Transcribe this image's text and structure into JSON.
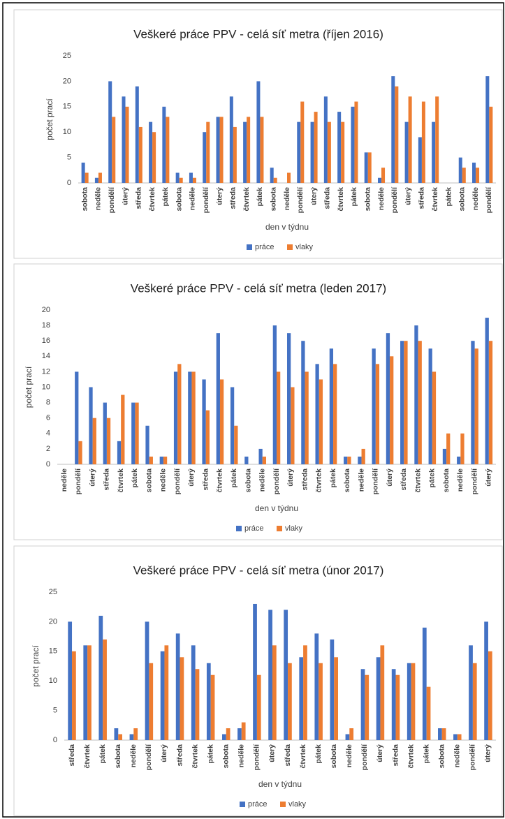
{
  "chart_data": [
    {
      "type": "bar",
      "title": "Veškeré práce PPV - celá síť metra (říjen 2016)",
      "x_label": "den v týdnu",
      "y_label": "počet prací",
      "categories": [
        "sobota",
        "neděle",
        "pondělí",
        "úterý",
        "středa",
        "čtvrtek",
        "pátek",
        "sobota",
        "neděle",
        "pondělí",
        "úterý",
        "středa",
        "čtvrtek",
        "pátek",
        "sobota",
        "neděle",
        "pondělí",
        "úterý",
        "středa",
        "čtvrtek",
        "pátek",
        "sobota",
        "neděle",
        "pondělí",
        "úterý",
        "středa",
        "čtvrtek",
        "pátek",
        "sobota",
        "neděle",
        "pondělí"
      ],
      "series": [
        {
          "name": "práce",
          "color": "#4472c4",
          "values": [
            4,
            1,
            20,
            17,
            19,
            12,
            15,
            2,
            2,
            10,
            13,
            17,
            12,
            20,
            3,
            0,
            12,
            12,
            17,
            14,
            15,
            6,
            1,
            21,
            12,
            9,
            12,
            0,
            5,
            4,
            21
          ]
        },
        {
          "name": "vlaky",
          "color": "#ed7d31",
          "values": [
            2,
            2,
            13,
            15,
            11,
            10,
            13,
            1,
            1,
            12,
            13,
            11,
            13,
            13,
            1,
            2,
            16,
            14,
            12,
            12,
            16,
            6,
            3,
            19,
            17,
            16,
            17,
            0,
            3,
            3,
            15
          ]
        }
      ],
      "ylim": [
        0,
        25
      ],
      "yticks": [
        0,
        5,
        10,
        15,
        20,
        25
      ],
      "legend": "bottom"
    },
    {
      "type": "bar",
      "title": "Veškeré práce PPV - celá síť metra (leden 2017)",
      "x_label": "den v týdnu",
      "y_label": "počet prací",
      "categories": [
        "neděle",
        "pondělí",
        "úterý",
        "středa",
        "čtvrtek",
        "pátek",
        "sobota",
        "neděle",
        "pondělí",
        "úterý",
        "středa",
        "čtvrtek",
        "pátek",
        "sobota",
        "neděle",
        "pondělí",
        "úterý",
        "středa",
        "čtvrtek",
        "pátek",
        "sobota",
        "neděle",
        "pondělí",
        "úterý",
        "středa",
        "čtvrtek",
        "pátek",
        "sobota",
        "neděle",
        "pondělí",
        "úterý"
      ],
      "series": [
        {
          "name": "práce",
          "color": "#4472c4",
          "values": [
            0,
            12,
            10,
            8,
            3,
            8,
            5,
            1,
            12,
            12,
            11,
            17,
            10,
            1,
            2,
            18,
            17,
            16,
            13,
            15,
            1,
            1,
            15,
            17,
            16,
            18,
            15,
            2,
            1,
            16,
            19
          ]
        },
        {
          "name": "vlaky",
          "color": "#ed7d31",
          "values": [
            0,
            3,
            6,
            6,
            9,
            8,
            1,
            1,
            13,
            12,
            7,
            11,
            5,
            0,
            1,
            12,
            10,
            12,
            11,
            13,
            1,
            2,
            13,
            14,
            16,
            16,
            12,
            4,
            4,
            15,
            16
          ]
        }
      ],
      "ylim": [
        0,
        20
      ],
      "yticks": [
        0,
        2,
        4,
        6,
        8,
        10,
        12,
        14,
        16,
        18,
        20
      ],
      "legend": "bottom"
    },
    {
      "type": "bar",
      "title": "Veškeré práce PPV - celá síť metra (únor 2017)",
      "x_label": "den v týdnu",
      "y_label": "počet prací",
      "categories": [
        "středa",
        "čtvrtek",
        "pátek",
        "sobota",
        "neděle",
        "pondělí",
        "úterý",
        "středa",
        "čtvrtek",
        "pátek",
        "sobota",
        "neděle",
        "pondělí",
        "úterý",
        "středa",
        "čtvrtek",
        "pátek",
        "sobota",
        "neděle",
        "pondělí",
        "úterý",
        "středa",
        "čtvrtek",
        "pátek",
        "sobota",
        "neděle",
        "pondělí",
        "úterý"
      ],
      "series": [
        {
          "name": "práce",
          "color": "#4472c4",
          "values": [
            20,
            16,
            21,
            2,
            1,
            20,
            15,
            18,
            16,
            13,
            1,
            2,
            23,
            22,
            22,
            14,
            18,
            17,
            1,
            12,
            14,
            12,
            13,
            19,
            2,
            1,
            16,
            20
          ]
        },
        {
          "name": "vlaky",
          "color": "#ed7d31",
          "values": [
            15,
            16,
            17,
            1,
            2,
            13,
            16,
            14,
            12,
            11,
            2,
            3,
            11,
            16,
            13,
            16,
            13,
            14,
            2,
            11,
            16,
            11,
            13,
            9,
            2,
            1,
            13,
            15
          ]
        }
      ],
      "ylim": [
        0,
        25
      ],
      "yticks": [
        0,
        5,
        10,
        15,
        20,
        25
      ],
      "legend": "bottom"
    }
  ]
}
